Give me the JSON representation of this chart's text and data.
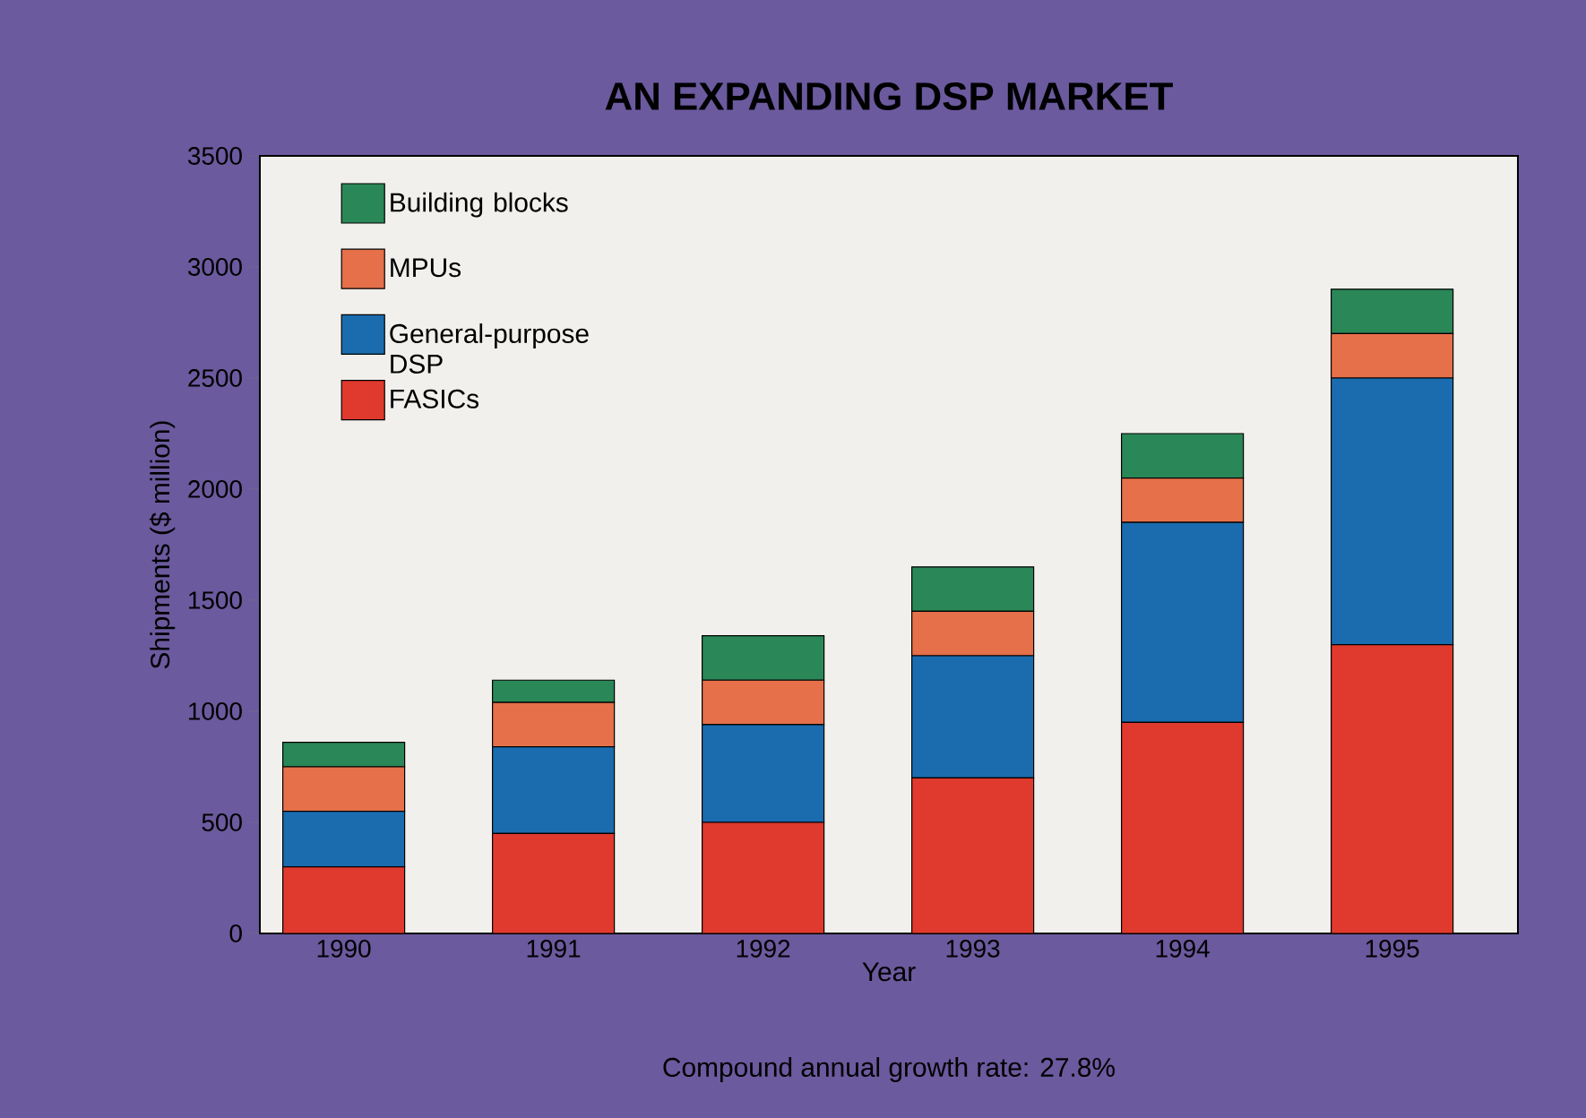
{
  "chart_data": {
    "type": "bar",
    "stacked": true,
    "title": "AN EXPANDING DSP MARKET",
    "xlabel": "Year",
    "ylabel": "Shipments ($ million)",
    "categories": [
      "1990",
      "1991",
      "1992",
      "1993",
      "1994",
      "1995"
    ],
    "series": [
      {
        "name": "FASICs",
        "color": "#e0392d",
        "values": [
          300,
          450,
          500,
          700,
          950,
          1300
        ]
      },
      {
        "name": "General-purpose DSP",
        "color": "#1b6cae",
        "values": [
          250,
          390,
          440,
          550,
          900,
          1200
        ]
      },
      {
        "name": "MPUs",
        "color": "#e5704a",
        "values": [
          200,
          200,
          200,
          200,
          200,
          200
        ]
      },
      {
        "name": "Building blocks",
        "color": "#2a8757",
        "values": [
          110,
          100,
          200,
          200,
          200,
          200
        ]
      }
    ],
    "ylim": [
      0,
      3500
    ],
    "yticks": [
      0,
      500,
      1000,
      1500,
      2000,
      2500,
      3000,
      3500
    ],
    "grid": false,
    "legend": "top left",
    "annotations": [
      "Compound annual growth rate: 27.8%"
    ]
  }
}
